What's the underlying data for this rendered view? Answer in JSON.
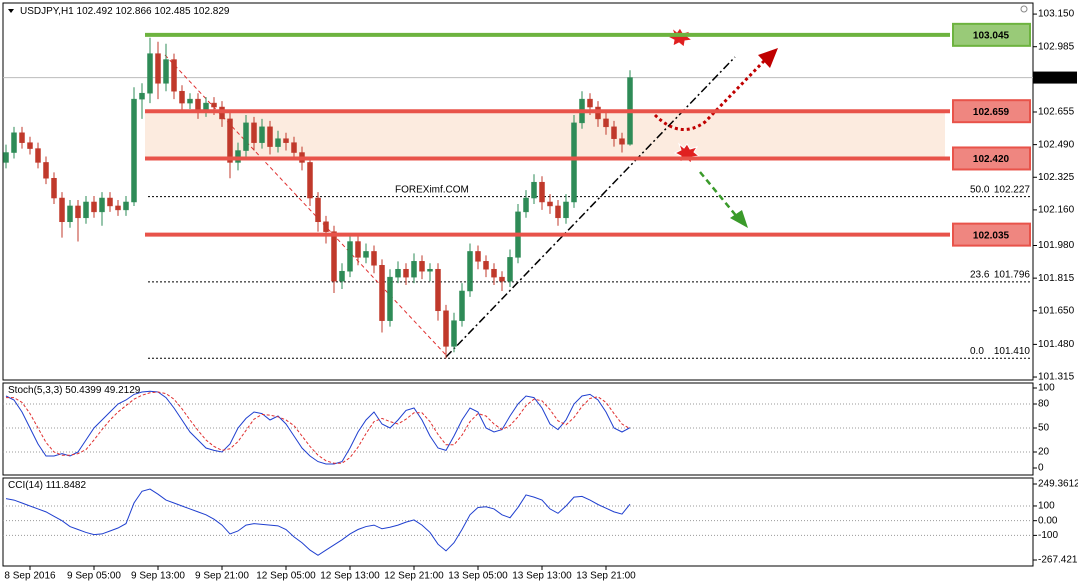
{
  "chart_data": [
    {
      "type": "candlestick",
      "symbol": "USDJPY,H1",
      "watermark": "FOREXimf.COM",
      "up_color": "#2e8b57",
      "down_color": "#c0392b",
      "grid": false,
      "ylim": [
        101.3,
        103.206
      ],
      "yticks": [
        {
          "value": 103.15,
          "label": "103.150"
        },
        102.985,
        102.655,
        {
          "value": 102.49,
          "label": "102.490"
        },
        102.325,
        {
          "value": 102.16,
          "label": "102.160"
        },
        {
          "value": 101.98,
          "label": "101.980"
        },
        101.815,
        {
          "value": 101.65,
          "label": "101.650"
        },
        {
          "value": 101.48,
          "label": "101.480"
        },
        101.315
      ],
      "levels": [
        {
          "value": 103.045,
          "color": "#6db33f"
        },
        {
          "value": 102.659,
          "color": "#e8534a"
        },
        {
          "value": 102.42,
          "label": "102.420",
          "color": "#e8534a"
        },
        {
          "value": 102.035,
          "color": "#e8534a"
        }
      ],
      "fib": [
        {
          "level": "50.0",
          "value": 102.227
        },
        {
          "level": "23.6",
          "value": 101.796
        },
        {
          "level": "0.0",
          "value": 101.41,
          "label": "101.410"
        }
      ],
      "categories": [
        null,
        null,
        null,
        "8 Sep 2016",
        null,
        null,
        null,
        null,
        null,
        null,
        null,
        "9 Sep 05:00",
        null,
        null,
        null,
        null,
        null,
        null,
        null,
        "9 Sep 13:00",
        null,
        null,
        null,
        null,
        null,
        null,
        null,
        "9 Sep 21:00",
        null,
        null,
        null,
        null,
        null,
        null,
        null,
        "12 Sep 05:00",
        null,
        null,
        null,
        null,
        null,
        null,
        null,
        "12 Sep 13:00",
        null,
        null,
        null,
        null,
        null,
        null,
        null,
        "12 Sep 21:00",
        null,
        null,
        null,
        null,
        null,
        null,
        null,
        "13 Sep 05:00",
        null,
        null,
        null,
        null,
        null,
        null,
        null,
        "13 Sep 13:00",
        null,
        null,
        null,
        null,
        null,
        null,
        null,
        "13 Sep 21:00",
        null,
        null,
        null
      ],
      "ohlc": [
        [
          102.4,
          102.49,
          102.37,
          102.45
        ],
        [
          102.45,
          102.58,
          102.42,
          102.55
        ],
        [
          102.55,
          102.58,
          102.47,
          102.5
        ],
        [
          102.5,
          102.53,
          102.44,
          102.47
        ],
        [
          102.47,
          102.5,
          102.37,
          102.4
        ],
        [
          102.4,
          102.43,
          102.29,
          102.32
        ],
        [
          102.32,
          102.35,
          102.19,
          102.22
        ],
        [
          102.22,
          102.25,
          102.02,
          102.1
        ],
        [
          102.1,
          102.21,
          102.07,
          102.18
        ],
        [
          102.18,
          102.21,
          102.0,
          102.12
        ],
        [
          102.12,
          102.23,
          102.09,
          102.2
        ],
        [
          102.2,
          102.23,
          102.12,
          102.15
        ],
        [
          102.15,
          102.25,
          102.08,
          102.22
        ],
        [
          102.22,
          102.25,
          102.15,
          102.18
        ],
        [
          102.18,
          102.21,
          102.13,
          102.16
        ],
        [
          102.16,
          102.23,
          102.13,
          102.2
        ],
        [
          102.2,
          102.78,
          102.18,
          102.72
        ],
        [
          102.72,
          102.8,
          102.62,
          102.75
        ],
        [
          102.75,
          103.03,
          102.7,
          102.95
        ],
        [
          102.95,
          103.01,
          102.72,
          102.8
        ],
        [
          102.8,
          103.0,
          102.76,
          102.92
        ],
        [
          102.92,
          102.95,
          102.72,
          102.76
        ],
        [
          102.76,
          102.79,
          102.66,
          102.7
        ],
        [
          102.7,
          102.75,
          102.67,
          102.72
        ],
        [
          102.72,
          102.75,
          102.62,
          102.66
        ],
        [
          102.66,
          102.73,
          102.63,
          102.7
        ],
        [
          102.7,
          102.73,
          102.64,
          102.68
        ],
        [
          102.68,
          102.71,
          102.58,
          102.62
        ],
        [
          102.62,
          102.65,
          102.32,
          102.4
        ],
        [
          102.4,
          102.5,
          102.36,
          102.46
        ],
        [
          102.46,
          102.64,
          102.43,
          102.6
        ],
        [
          102.6,
          102.63,
          102.46,
          102.5
        ],
        [
          102.5,
          102.62,
          102.47,
          102.58
        ],
        [
          102.58,
          102.61,
          102.44,
          102.48
        ],
        [
          102.48,
          102.56,
          102.45,
          102.52
        ],
        [
          102.52,
          102.55,
          102.46,
          102.5
        ],
        [
          102.5,
          102.53,
          102.41,
          102.45
        ],
        [
          102.45,
          102.48,
          102.36,
          102.4
        ],
        [
          102.4,
          102.43,
          102.18,
          102.22
        ],
        [
          102.22,
          102.25,
          102.05,
          102.1
        ],
        [
          102.1,
          102.13,
          101.99,
          102.05
        ],
        [
          102.05,
          102.08,
          101.74,
          101.8
        ],
        [
          101.8,
          101.89,
          101.76,
          101.85
        ],
        [
          101.85,
          102.04,
          101.82,
          102.0
        ],
        [
          102.0,
          102.03,
          101.88,
          101.92
        ],
        [
          101.92,
          101.99,
          101.89,
          101.95
        ],
        [
          101.95,
          101.98,
          101.84,
          101.88
        ],
        [
          101.88,
          101.91,
          101.54,
          101.6
        ],
        [
          101.6,
          101.86,
          101.57,
          101.82
        ],
        [
          101.82,
          101.9,
          101.79,
          101.86
        ],
        [
          101.86,
          101.89,
          101.78,
          101.82
        ],
        [
          101.82,
          101.94,
          101.79,
          101.9
        ],
        [
          101.9,
          101.93,
          101.81,
          101.85
        ],
        [
          101.85,
          101.89,
          101.8,
          101.86
        ],
        [
          101.86,
          101.89,
          101.6,
          101.65
        ],
        [
          101.65,
          101.68,
          101.41,
          101.47
        ],
        [
          101.47,
          101.64,
          101.44,
          101.6
        ],
        [
          101.6,
          101.79,
          101.57,
          101.75
        ],
        [
          101.75,
          101.99,
          101.72,
          101.95
        ],
        [
          101.95,
          101.98,
          101.86,
          101.9
        ],
        [
          101.9,
          101.93,
          101.82,
          101.86
        ],
        [
          101.86,
          101.89,
          101.78,
          101.82
        ],
        [
          101.82,
          101.85,
          101.75,
          101.8
        ],
        [
          101.8,
          101.96,
          101.77,
          101.92
        ],
        [
          101.92,
          102.19,
          101.89,
          102.15
        ],
        [
          102.15,
          102.26,
          102.12,
          102.22
        ],
        [
          102.22,
          102.34,
          102.19,
          102.3
        ],
        [
          102.3,
          102.33,
          102.16,
          102.2
        ],
        [
          102.2,
          102.24,
          102.14,
          102.18
        ],
        [
          102.18,
          102.21,
          102.08,
          102.12
        ],
        [
          102.12,
          102.24,
          102.09,
          102.2
        ],
        [
          102.2,
          102.64,
          102.17,
          102.6
        ],
        [
          102.6,
          102.76,
          102.57,
          102.72
        ],
        [
          102.72,
          102.75,
          102.64,
          102.68
        ],
        [
          102.68,
          102.71,
          102.58,
          102.62
        ],
        [
          102.62,
          102.65,
          102.54,
          102.58
        ],
        [
          102.58,
          102.61,
          102.48,
          102.52
        ],
        [
          102.52,
          102.55,
          102.45,
          102.492
        ],
        [
          102.492,
          102.866,
          102.485,
          102.829
        ]
      ]
    },
    {
      "type": "line",
      "title": "Stoch(5,3,3)",
      "grid": true,
      "ylim": [
        -8.75,
        106.25
      ],
      "yticks": [
        100,
        80,
        50,
        20,
        0
      ],
      "series": [
        {
          "color": "#1f3fcf",
          "dashed": false,
          "values": [
            90,
            85,
            70,
            50,
            30,
            15,
            15,
            18,
            15,
            20,
            35,
            50,
            60,
            70,
            80,
            85,
            92,
            95,
            96,
            95,
            88,
            75,
            60,
            45,
            35,
            25,
            22,
            20,
            30,
            50,
            62,
            70,
            68,
            60,
            65,
            55,
            40,
            25,
            15,
            8,
            5,
            5,
            8,
            25,
            45,
            60,
            70,
            55,
            50,
            60,
            72,
            75,
            60,
            40,
            25,
            22,
            40,
            60,
            75,
            70,
            50,
            45,
            48,
            65,
            80,
            90,
            88,
            75,
            55,
            48,
            60,
            80,
            90,
            92,
            85,
            70,
            50,
            45,
            50.4399
          ]
        },
        {
          "color": "#e03030",
          "dashed": true,
          "values": [
            88,
            88,
            82,
            68,
            50,
            32,
            20,
            16,
            16,
            18,
            23,
            35,
            48,
            60,
            70,
            78,
            86,
            91,
            94,
            95,
            93,
            86,
            74,
            60,
            47,
            35,
            27,
            22,
            24,
            33,
            47,
            61,
            67,
            66,
            64,
            60,
            53,
            40,
            27,
            16,
            9,
            6,
            6,
            13,
            26,
            43,
            58,
            62,
            58,
            55,
            61,
            69,
            69,
            58,
            42,
            29,
            29,
            41,
            58,
            68,
            65,
            55,
            48,
            53,
            64,
            78,
            86,
            84,
            73,
            59,
            54,
            63,
            77,
            87,
            89,
            82,
            68,
            55,
            49.2129
          ]
        }
      ]
    },
    {
      "type": "line",
      "title": "CCI(14)",
      "grid": true,
      "ylim": [
        -308.2,
        290.2
      ],
      "yticks": [
        249.3612,
        100,
        {
          "value": 0,
          "label": "0.00"
        },
        -100,
        -267.4215
      ],
      "series": [
        {
          "color": "#1f3fcf",
          "dashed": false,
          "values": [
            150,
            140,
            120,
            100,
            80,
            60,
            30,
            0,
            -40,
            -60,
            -80,
            -95,
            -90,
            -70,
            -50,
            -20,
            120,
            200,
            215,
            180,
            140,
            120,
            100,
            80,
            60,
            40,
            10,
            -30,
            -90,
            -70,
            -30,
            -20,
            -25,
            -30,
            -35,
            -60,
            -110,
            -150,
            -200,
            -235,
            -200,
            -165,
            -130,
            -90,
            -60,
            -40,
            -30,
            -55,
            -45,
            -30,
            -10,
            5,
            -30,
            -80,
            -160,
            -205,
            -150,
            -60,
            40,
            90,
            95,
            80,
            40,
            20,
            90,
            175,
            160,
            140,
            80,
            50,
            100,
            160,
            165,
            140,
            110,
            85,
            60,
            45,
            111.8482
          ]
        }
      ]
    }
  ]
}
